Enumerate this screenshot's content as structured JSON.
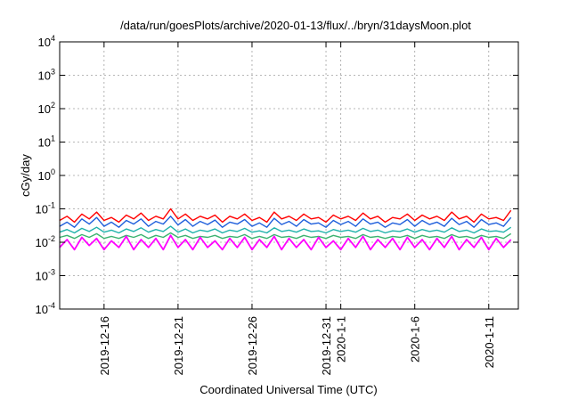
{
  "chart_data": {
    "type": "line",
    "title": "/data/run/goesPlots/archive/2020-01-13/flux/../bryn/31daysMoon.plot",
    "xlabel": "Coordinated Universal Time (UTC)",
    "ylabel": "cGy/day",
    "yscale": "log",
    "ylim": [
      0.0001,
      10000
    ],
    "y_ticks": [
      {
        "base": "10",
        "exp": "-4",
        "value": 0.0001
      },
      {
        "base": "10",
        "exp": "-3",
        "value": 0.001
      },
      {
        "base": "10",
        "exp": "-2",
        "value": 0.01
      },
      {
        "base": "10",
        "exp": "-1",
        "value": 0.1
      },
      {
        "base": "10",
        "exp": "0",
        "value": 1
      },
      {
        "base": "10",
        "exp": "1",
        "value": 10
      },
      {
        "base": "10",
        "exp": "2",
        "value": 100
      },
      {
        "base": "10",
        "exp": "3",
        "value": 1000
      },
      {
        "base": "10",
        "exp": "4",
        "value": 10000
      }
    ],
    "xlim": [
      "2019-12-13",
      "2020-01-13"
    ],
    "x_ticks": [
      {
        "label": "2019-12-16",
        "date": "2019-12-16"
      },
      {
        "label": "2019-12-21",
        "date": "2019-12-21"
      },
      {
        "label": "2019-12-26",
        "date": "2019-12-26"
      },
      {
        "label": "2019-12-31",
        "date": "2019-12-31"
      },
      {
        "label": "2020-1-1",
        "date": "2020-01-01"
      },
      {
        "label": "2020-1-6",
        "date": "2020-01-06"
      },
      {
        "label": "2020-1-11",
        "date": "2020-01-11"
      }
    ],
    "grid": true,
    "legend": "none",
    "sampling": "every 12 hours",
    "series": [
      {
        "color": "#ff0000",
        "values": [
          0.045,
          0.06,
          0.04,
          0.07,
          0.05,
          0.08,
          0.045,
          0.055,
          0.04,
          0.065,
          0.05,
          0.075,
          0.045,
          0.06,
          0.05,
          0.1,
          0.05,
          0.07,
          0.045,
          0.06,
          0.05,
          0.065,
          0.04,
          0.06,
          0.05,
          0.07,
          0.045,
          0.055,
          0.04,
          0.08,
          0.05,
          0.06,
          0.045,
          0.07,
          0.05,
          0.055,
          0.04,
          0.065,
          0.05,
          0.06,
          0.045,
          0.075,
          0.05,
          0.06,
          0.04,
          0.055,
          0.05,
          0.07,
          0.045,
          0.065,
          0.05,
          0.06,
          0.045,
          0.08,
          0.05,
          0.06,
          0.04,
          0.07,
          0.05,
          0.055,
          0.045,
          0.09
        ]
      },
      {
        "color": "#1f5fdc",
        "values": [
          0.03,
          0.04,
          0.028,
          0.05,
          0.035,
          0.055,
          0.03,
          0.04,
          0.028,
          0.045,
          0.035,
          0.05,
          0.03,
          0.042,
          0.035,
          0.06,
          0.033,
          0.048,
          0.03,
          0.042,
          0.034,
          0.046,
          0.028,
          0.04,
          0.035,
          0.048,
          0.03,
          0.038,
          0.028,
          0.052,
          0.034,
          0.042,
          0.03,
          0.048,
          0.035,
          0.038,
          0.028,
          0.045,
          0.034,
          0.042,
          0.03,
          0.05,
          0.035,
          0.04,
          0.028,
          0.038,
          0.034,
          0.048,
          0.03,
          0.045,
          0.034,
          0.04,
          0.03,
          0.052,
          0.034,
          0.042,
          0.028,
          0.048,
          0.034,
          0.038,
          0.03,
          0.055
        ]
      },
      {
        "color": "#20b2aa",
        "values": [
          0.02,
          0.024,
          0.019,
          0.026,
          0.021,
          0.028,
          0.02,
          0.023,
          0.019,
          0.025,
          0.021,
          0.027,
          0.02,
          0.024,
          0.021,
          0.03,
          0.02,
          0.025,
          0.019,
          0.023,
          0.021,
          0.025,
          0.019,
          0.023,
          0.021,
          0.026,
          0.02,
          0.022,
          0.019,
          0.027,
          0.021,
          0.023,
          0.02,
          0.025,
          0.021,
          0.022,
          0.019,
          0.024,
          0.021,
          0.023,
          0.02,
          0.026,
          0.021,
          0.023,
          0.019,
          0.022,
          0.021,
          0.025,
          0.02,
          0.024,
          0.021,
          0.023,
          0.02,
          0.027,
          0.021,
          0.023,
          0.019,
          0.025,
          0.021,
          0.022,
          0.02,
          0.028
        ]
      },
      {
        "color": "#3cb371",
        "values": [
          0.014,
          0.016,
          0.013,
          0.017,
          0.014,
          0.018,
          0.013,
          0.015,
          0.013,
          0.016,
          0.014,
          0.017,
          0.013,
          0.016,
          0.014,
          0.019,
          0.014,
          0.016,
          0.013,
          0.015,
          0.014,
          0.016,
          0.013,
          0.015,
          0.014,
          0.017,
          0.013,
          0.015,
          0.013,
          0.017,
          0.014,
          0.015,
          0.013,
          0.016,
          0.014,
          0.015,
          0.013,
          0.016,
          0.014,
          0.015,
          0.013,
          0.017,
          0.014,
          0.015,
          0.013,
          0.015,
          0.014,
          0.016,
          0.013,
          0.016,
          0.014,
          0.015,
          0.013,
          0.017,
          0.014,
          0.015,
          0.013,
          0.016,
          0.014,
          0.015,
          0.013,
          0.018
        ]
      },
      {
        "color": "#ff00ff",
        "values": [
          0.007,
          0.012,
          0.006,
          0.014,
          0.008,
          0.013,
          0.006,
          0.011,
          0.007,
          0.015,
          0.006,
          0.012,
          0.007,
          0.013,
          0.006,
          0.016,
          0.007,
          0.012,
          0.006,
          0.014,
          0.007,
          0.011,
          0.006,
          0.013,
          0.007,
          0.014,
          0.006,
          0.012,
          0.007,
          0.015,
          0.006,
          0.013,
          0.007,
          0.012,
          0.006,
          0.014,
          0.007,
          0.011,
          0.006,
          0.013,
          0.007,
          0.015,
          0.006,
          0.012,
          0.007,
          0.013,
          0.006,
          0.014,
          0.007,
          0.012,
          0.006,
          0.013,
          0.007,
          0.015,
          0.006,
          0.012,
          0.007,
          0.014,
          0.006,
          0.013,
          0.007,
          0.012
        ]
      }
    ]
  }
}
